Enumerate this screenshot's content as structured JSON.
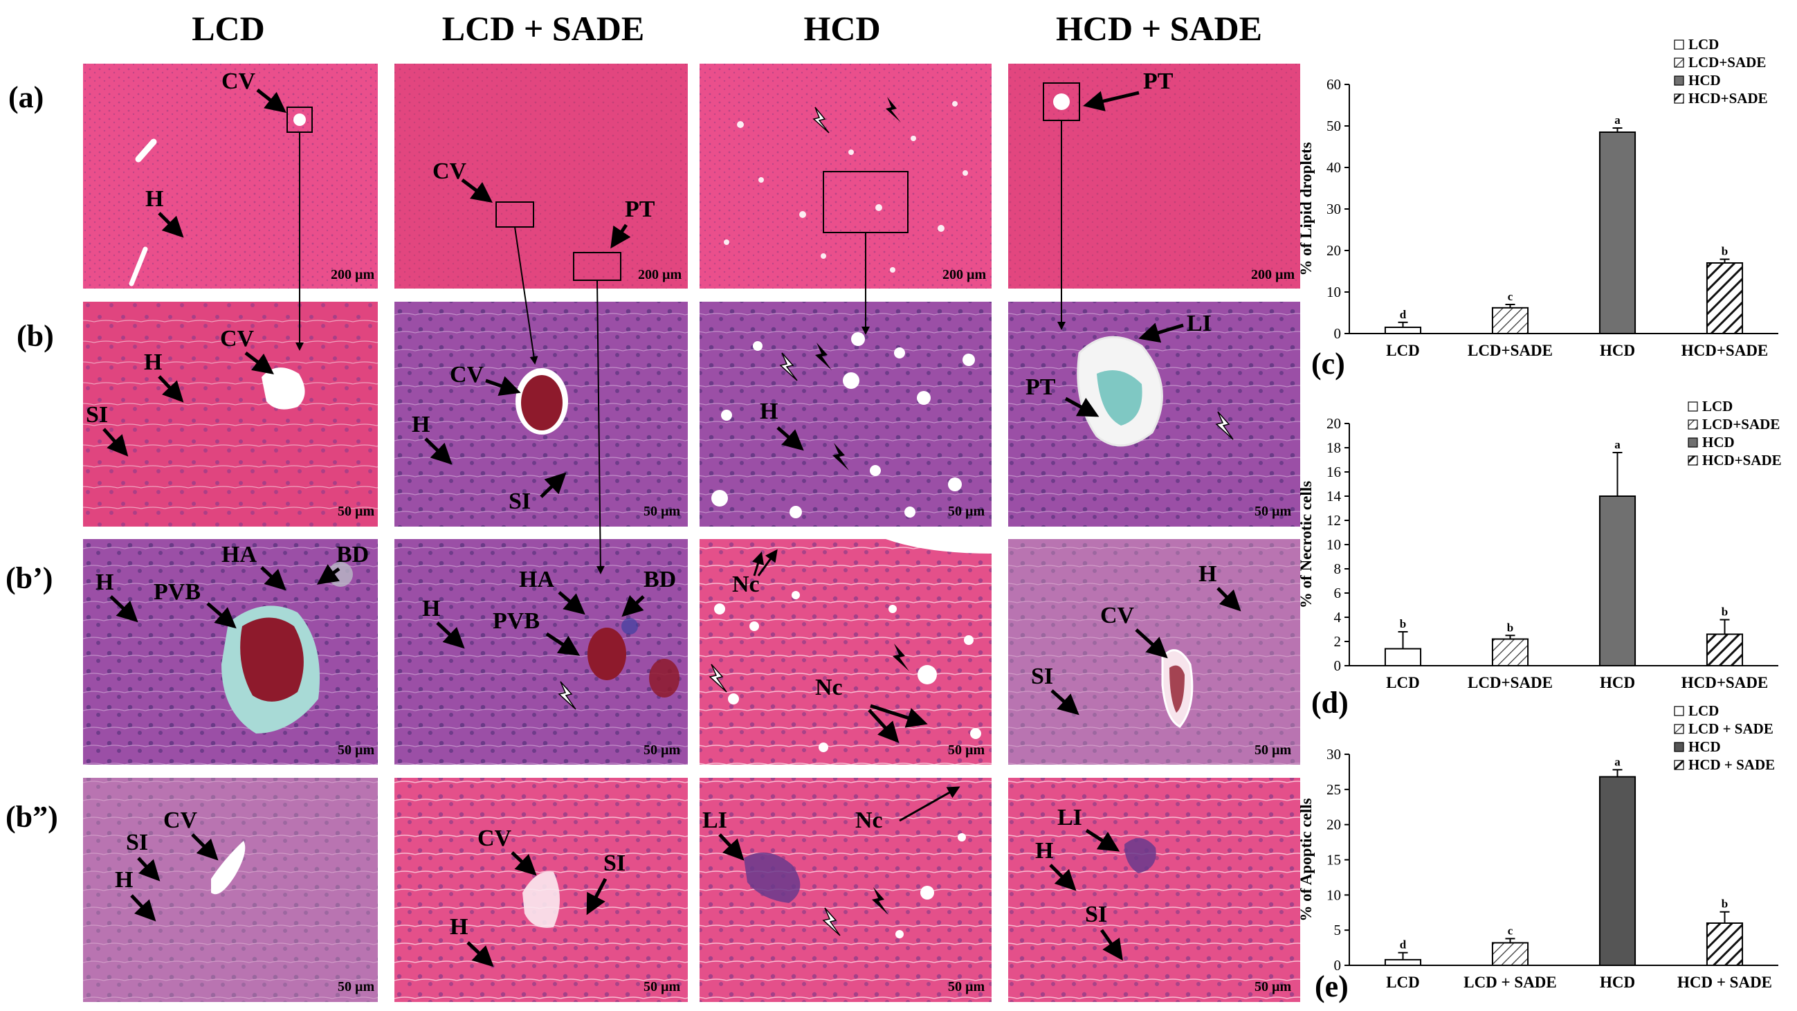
{
  "column_headers": [
    "LCD",
    "LCD + SADE",
    "HCD",
    "HCD + SADE"
  ],
  "row_labels": [
    "(a)",
    "(b)",
    "(b’)",
    "(b”)"
  ],
  "panels": [
    [
      {
        "scale": "200 µm",
        "labels": [
          "CV",
          "H"
        ]
      },
      {
        "scale": "200 µm",
        "labels": [
          "CV",
          "PT"
        ]
      },
      {
        "scale": "200 µm",
        "labels": []
      },
      {
        "scale": "200 µm",
        "labels": [
          "PT"
        ]
      }
    ],
    [
      {
        "scale": "50 µm",
        "labels": [
          "CV",
          "H",
          "SI"
        ]
      },
      {
        "scale": "50 µm",
        "labels": [
          "CV",
          "H",
          "SI"
        ]
      },
      {
        "scale": "50 µm",
        "labels": [
          "H"
        ]
      },
      {
        "scale": "50 µm",
        "labels": [
          "LI",
          "PT"
        ]
      }
    ],
    [
      {
        "scale": "50 µm",
        "labels": [
          "H",
          "PVB",
          "HA",
          "BD"
        ]
      },
      {
        "scale": "50 µm",
        "labels": [
          "H",
          "PVB",
          "HA",
          "BD"
        ]
      },
      {
        "scale": "50 µm",
        "labels": [
          "Nc",
          "Nc"
        ]
      },
      {
        "scale": "50 µm",
        "labels": [
          "H",
          "CV",
          "SI"
        ]
      }
    ],
    [
      {
        "scale": "50 µm",
        "labels": [
          "CV",
          "SI",
          "H"
        ]
      },
      {
        "scale": "50 µm",
        "labels": [
          "CV",
          "SI",
          "H"
        ]
      },
      {
        "scale": "50 µm",
        "labels": [
          "LI",
          "Nc"
        ]
      },
      {
        "scale": "50 µm",
        "labels": [
          "LI",
          "H",
          "SI"
        ]
      }
    ]
  ],
  "colors": {
    "stain_pink": "#e0457f",
    "stain_purple": "#9b4fa6",
    "bar_dark": "#707070",
    "bar_darker": "#555555"
  },
  "chart_data": [
    {
      "type": "bar",
      "panel_label": "(c)",
      "categories": [
        "LCD",
        "LCD+SADE",
        "HCD",
        "HCD+SADE"
      ],
      "values": [
        1.5,
        6.2,
        48.5,
        17
      ],
      "errors": [
        1.2,
        0.8,
        1.0,
        0.9
      ],
      "letters": [
        "d",
        "c",
        "a",
        "b"
      ],
      "patterns": [
        "white",
        "hatch",
        "dark",
        "hatch-bold"
      ],
      "ylabel": "% of Lipid droplets",
      "ylim": [
        0,
        60
      ],
      "yticks": [
        0,
        10,
        20,
        30,
        40,
        50,
        60
      ],
      "legend": [
        "LCD",
        "LCD+SADE",
        "HCD",
        "HCD+SADE"
      ],
      "legend_position": "top-right"
    },
    {
      "type": "bar",
      "panel_label": "(d)",
      "categories": [
        "LCD",
        "LCD+SADE",
        "HCD",
        "HCD+SADE"
      ],
      "values": [
        1.4,
        2.2,
        14,
        2.6
      ],
      "errors": [
        1.4,
        0.3,
        3.6,
        1.2
      ],
      "letters": [
        "b",
        "b",
        "a",
        "b"
      ],
      "patterns": [
        "white",
        "hatch",
        "dark",
        "hatch-bold"
      ],
      "ylabel": "% of Necrotic cells",
      "ylim": [
        0,
        20
      ],
      "yticks": [
        0,
        2,
        4,
        6,
        8,
        10,
        12,
        14,
        16,
        18,
        20
      ],
      "legend": [
        "LCD",
        "LCD+SADE",
        "HCD",
        "HCD+SADE"
      ],
      "legend_position": "top-right"
    },
    {
      "type": "bar",
      "panel_label": "(e)",
      "categories": [
        "LCD",
        "LCD + SADE",
        "HCD",
        "HCD + SADE"
      ],
      "values": [
        0.8,
        3.2,
        26.8,
        6
      ],
      "errors": [
        1.0,
        0.6,
        1.0,
        1.6
      ],
      "letters": [
        "d",
        "c",
        "a",
        "b"
      ],
      "patterns": [
        "white",
        "hatch",
        "darker",
        "hatch-bold"
      ],
      "ylabel": "% of Apoptic cells",
      "ylim": [
        0,
        30
      ],
      "yticks": [
        0,
        5,
        10,
        15,
        20,
        25,
        30
      ],
      "legend": [
        "LCD",
        "LCD + SADE",
        "HCD",
        "HCD + SADE"
      ],
      "legend_position": "top-right"
    }
  ]
}
